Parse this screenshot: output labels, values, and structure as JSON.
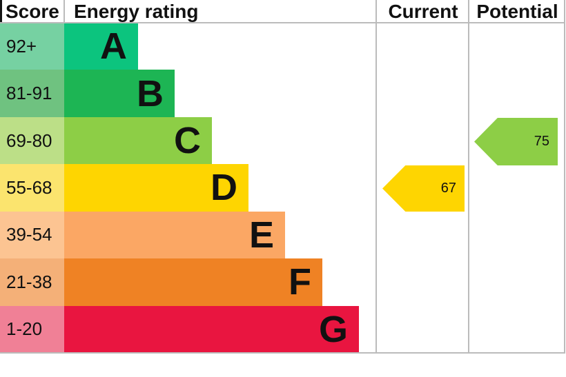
{
  "header": {
    "score": "Score",
    "energy_rating": "Energy rating",
    "current": "Current",
    "potential": "Potential"
  },
  "chart_data": {
    "type": "bar",
    "title": "Energy rating",
    "categories": [
      "A",
      "B",
      "C",
      "D",
      "E",
      "F",
      "G"
    ],
    "score_ranges": [
      "92+",
      "81-91",
      "69-80",
      "55-68",
      "39-54",
      "21-38",
      "1-20"
    ],
    "band_colors": [
      "#0cc47e",
      "#1db554",
      "#8dce46",
      "#fed501",
      "#fba764",
      "#ef8224",
      "#e91540"
    ],
    "score_cell_colors": [
      "#76d1a2",
      "#6fc280",
      "#bcdf87",
      "#fbe46e",
      "#fcc492",
      "#f4b078",
      "#f08096"
    ],
    "grid_color": "#bbbbbb",
    "current": {
      "value": 67,
      "band": "D",
      "color": "#fed501"
    },
    "potential": {
      "value": 75,
      "band": "C",
      "color": "#8dce46"
    }
  }
}
